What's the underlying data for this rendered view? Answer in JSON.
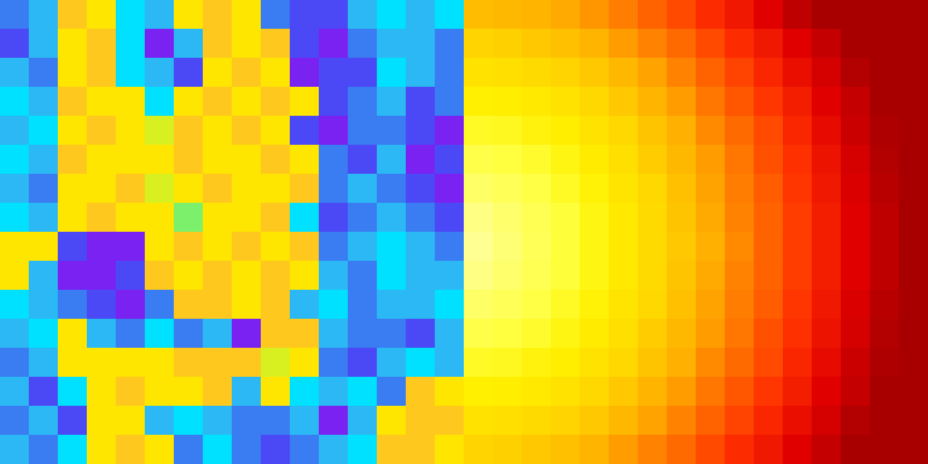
{
  "chart_data": [
    {
      "type": "heatmap",
      "color": "rainbow",
      "tick_labels": false,
      "zlim": [
        0,
        9
      ],
      "cells": [
        [
          2,
          3,
          8,
          7,
          4,
          3,
          7,
          8,
          7,
          2,
          1,
          1,
          3,
          4,
          3,
          4
        ],
        [
          1,
          3,
          7,
          8,
          4,
          0,
          3,
          8,
          7,
          8,
          1,
          0,
          2,
          3,
          3,
          2
        ],
        [
          3,
          2,
          7,
          8,
          4,
          3,
          1,
          7,
          8,
          7,
          0,
          1,
          1,
          4,
          3,
          2
        ],
        [
          4,
          3,
          8,
          7,
          7,
          4,
          7,
          8,
          7,
          8,
          7,
          1,
          2,
          3,
          1,
          2
        ],
        [
          3,
          4,
          7,
          8,
          7,
          6,
          8,
          7,
          8,
          7,
          1,
          0,
          2,
          2,
          1,
          0
        ],
        [
          4,
          3,
          8,
          7,
          7,
          7,
          8,
          7,
          7,
          8,
          7,
          2,
          1,
          3,
          0,
          1
        ],
        [
          3,
          2,
          7,
          7,
          8,
          6,
          7,
          8,
          7,
          7,
          8,
          2,
          3,
          2,
          1,
          0
        ],
        [
          4,
          3,
          7,
          8,
          7,
          7,
          5,
          7,
          7,
          8,
          4,
          1,
          2,
          3,
          2,
          1
        ],
        [
          7,
          7,
          1,
          0,
          0,
          7,
          8,
          7,
          8,
          7,
          8,
          2,
          3,
          4,
          3,
          2
        ],
        [
          7,
          3,
          0,
          0,
          1,
          8,
          7,
          8,
          7,
          8,
          7,
          3,
          2,
          4,
          3,
          3
        ],
        [
          4,
          3,
          2,
          1,
          0,
          2,
          8,
          8,
          7,
          8,
          3,
          4,
          2,
          3,
          3,
          4
        ],
        [
          3,
          4,
          7,
          3,
          2,
          4,
          2,
          3,
          0,
          8,
          8,
          3,
          2,
          2,
          1,
          3
        ],
        [
          2,
          3,
          7,
          7,
          7,
          7,
          8,
          8,
          8,
          6,
          7,
          2,
          1,
          3,
          4,
          3
        ],
        [
          3,
          1,
          4,
          7,
          8,
          7,
          7,
          8,
          3,
          7,
          4,
          3,
          4,
          2,
          8,
          7
        ],
        [
          2,
          3,
          1,
          7,
          7,
          3,
          4,
          3,
          2,
          2,
          3,
          0,
          3,
          7,
          8,
          8
        ],
        [
          3,
          2,
          4,
          7,
          8,
          7,
          2,
          4,
          2,
          1,
          2,
          3,
          4,
          8,
          8,
          7
        ]
      ]
    },
    {
      "type": "heatmap",
      "color": "hot",
      "tick_labels": false,
      "zlim": [
        0,
        9
      ],
      "cells": [
        [
          4.3,
          4.2,
          4.1,
          3.9,
          3.6,
          3.2,
          2.8,
          2.4,
          1.9,
          1.5,
          1.0,
          0.4,
          0,
          0,
          0,
          0
        ],
        [
          4.9,
          4.8,
          4.6,
          4.4,
          4.1,
          3.7,
          3.3,
          2.9,
          2.4,
          1.9,
          1.5,
          1.0,
          0.5,
          0,
          0,
          0
        ],
        [
          5.4,
          5.3,
          5.1,
          4.9,
          4.6,
          4.2,
          3.8,
          3.3,
          2.8,
          2.3,
          1.8,
          1.3,
          0.8,
          0.2,
          0,
          0
        ],
        [
          6.0,
          5.9,
          5.7,
          5.4,
          5.0,
          4.6,
          4.1,
          3.7,
          3.1,
          2.6,
          2.1,
          1.6,
          1.0,
          0.5,
          0,
          0
        ],
        [
          6.6,
          6.5,
          6.2,
          5.9,
          5.4,
          5.0,
          4.5,
          4.0,
          3.4,
          2.9,
          2.4,
          1.8,
          1.2,
          0.6,
          0.1,
          0
        ],
        [
          7.2,
          7.0,
          6.7,
          6.3,
          5.8,
          5.3,
          4.7,
          4.2,
          3.7,
          3.1,
          2.5,
          2.0,
          1.4,
          0.8,
          0.2,
          0
        ],
        [
          7.8,
          7.5,
          7.1,
          6.6,
          6.1,
          5.5,
          5.0,
          4.4,
          3.8,
          3.2,
          2.7,
          2.1,
          1.5,
          0.9,
          0.3,
          0
        ],
        [
          8.4,
          7.9,
          7.4,
          6.9,
          6.3,
          5.7,
          5.1,
          4.5,
          3.9,
          3.3,
          2.8,
          2.2,
          1.6,
          1.0,
          0.4,
          0
        ],
        [
          8.7,
          8.1,
          7.5,
          6.9,
          6.3,
          5.7,
          5.1,
          4.6,
          4.0,
          3.4,
          2.8,
          2.2,
          1.6,
          1.0,
          0.4,
          0
        ],
        [
          8.4,
          7.9,
          7.4,
          6.9,
          6.3,
          5.7,
          5.1,
          4.5,
          3.9,
          3.3,
          2.8,
          2.2,
          1.6,
          1.0,
          0.4,
          0
        ],
        [
          7.8,
          7.5,
          7.1,
          6.6,
          6.1,
          5.5,
          5.0,
          4.4,
          3.8,
          3.2,
          2.7,
          2.1,
          1.5,
          0.9,
          0.3,
          0
        ],
        [
          7.2,
          7.0,
          6.7,
          6.3,
          5.8,
          5.3,
          4.7,
          4.2,
          3.7,
          3.1,
          2.5,
          2.0,
          1.4,
          0.8,
          0.2,
          0
        ],
        [
          6.6,
          6.5,
          6.2,
          5.9,
          5.4,
          5.0,
          4.5,
          4.0,
          3.4,
          2.9,
          2.4,
          1.8,
          1.2,
          0.6,
          0.1,
          0
        ],
        [
          6.0,
          5.9,
          5.7,
          5.4,
          5.0,
          4.6,
          4.1,
          3.7,
          3.1,
          2.6,
          2.1,
          1.6,
          1.0,
          0.5,
          0,
          0
        ],
        [
          5.4,
          5.3,
          5.1,
          4.9,
          4.6,
          4.2,
          3.8,
          3.3,
          2.8,
          2.3,
          1.8,
          1.3,
          0.8,
          0.2,
          0,
          0
        ],
        [
          4.9,
          4.8,
          4.6,
          4.4,
          4.1,
          3.7,
          3.3,
          2.9,
          2.4,
          1.9,
          1.5,
          1.0,
          0.5,
          0,
          0,
          0
        ]
      ]
    }
  ]
}
